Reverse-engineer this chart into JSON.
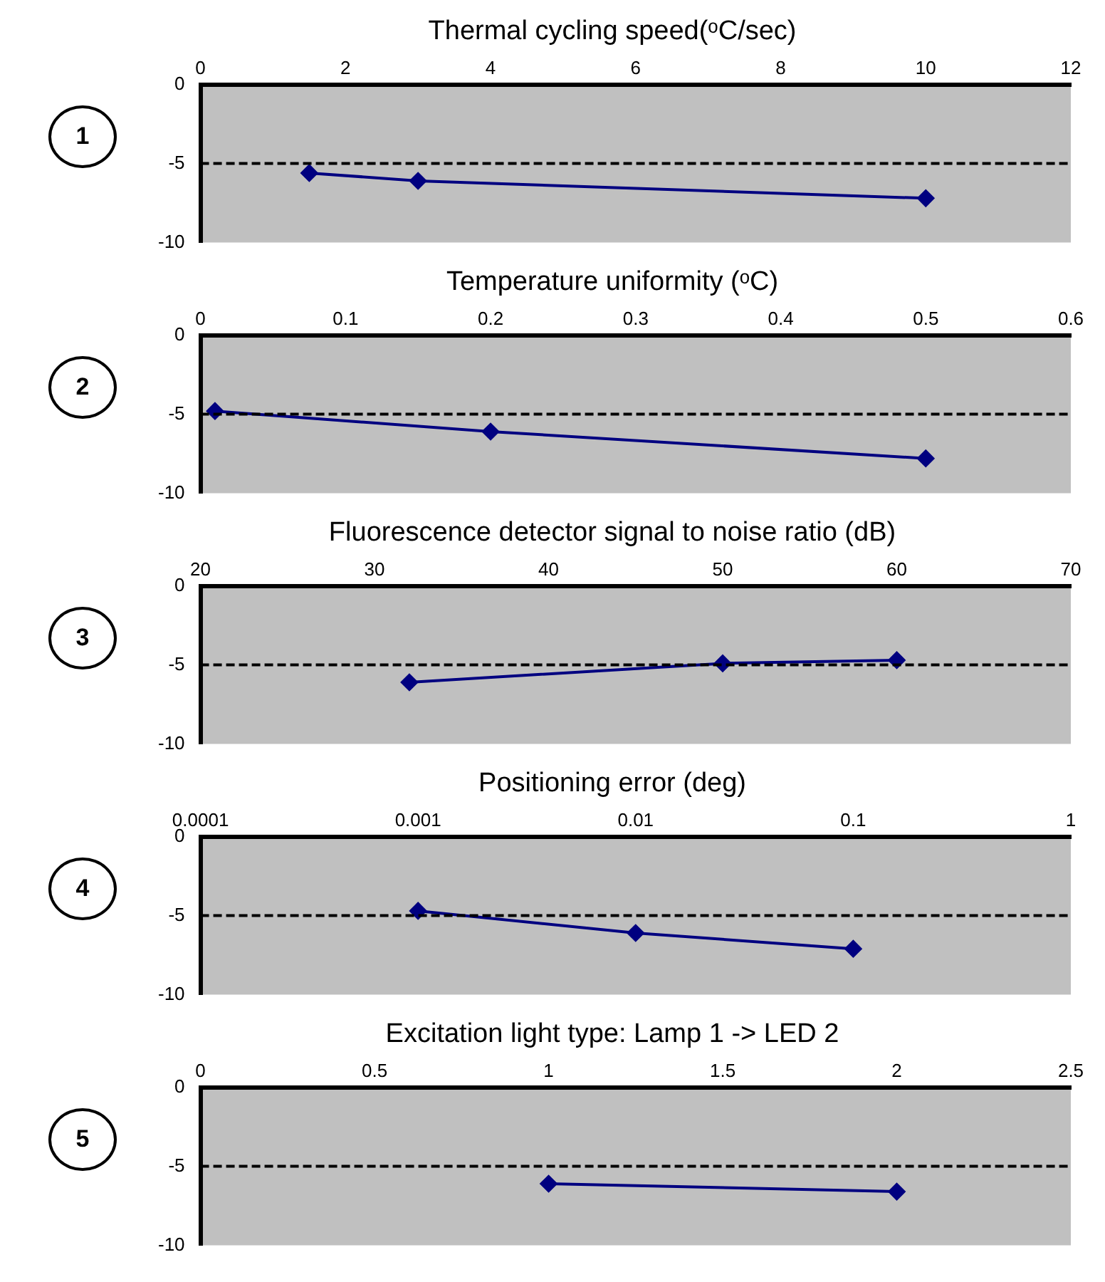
{
  "chart_data": [
    {
      "type": "line",
      "title": "Thermal cycling speed(ᵒC/sec)",
      "annotations": [
        "1"
      ],
      "x": [
        1.5,
        3,
        10
      ],
      "series": [
        {
          "color": "#000080",
          "values": [
            -5.6,
            -6.1,
            -7.2
          ]
        }
      ],
      "xlim": [
        0,
        12
      ],
      "xticks": [
        0,
        2,
        4,
        6,
        8,
        10,
        12
      ],
      "ylim": [
        -10,
        0
      ],
      "yticks": [
        -10,
        -5,
        0
      ],
      "ref_lines": [
        {
          "axis": "y",
          "value": -5,
          "color": "#000000",
          "line_style": "dashed"
        }
      ],
      "marker": "diamond",
      "grid": false,
      "legend": false
    },
    {
      "type": "line",
      "title": "Temperature uniformity (ᵒC)",
      "annotations": [
        "2"
      ],
      "x": [
        0.01,
        0.2,
        0.5
      ],
      "series": [
        {
          "color": "#000080",
          "values": [
            -4.8,
            -6.1,
            -7.8
          ]
        }
      ],
      "xlim": [
        0,
        0.6
      ],
      "xticks": [
        0,
        0.1,
        0.2,
        0.3,
        0.4,
        0.5,
        0.6
      ],
      "ylim": [
        -10,
        0
      ],
      "yticks": [
        -10,
        -5,
        0
      ],
      "ref_lines": [
        {
          "axis": "y",
          "value": -5,
          "color": "#000000",
          "line_style": "dashed"
        }
      ],
      "marker": "diamond",
      "grid": false,
      "legend": false
    },
    {
      "type": "line",
      "title": "Fluorescence detector signal to noise ratio (dB)",
      "annotations": [
        "3"
      ],
      "x": [
        32,
        50,
        60
      ],
      "series": [
        {
          "color": "#000080",
          "values": [
            -6.1,
            -4.9,
            -4.7
          ]
        }
      ],
      "xlim": [
        20,
        70
      ],
      "xticks": [
        20,
        30,
        40,
        50,
        60,
        70
      ],
      "ylim": [
        -10,
        0
      ],
      "yticks": [
        -10,
        -5,
        0
      ],
      "ref_lines": [
        {
          "axis": "y",
          "value": -5,
          "color": "#000000",
          "line_style": "dashed"
        }
      ],
      "marker": "diamond",
      "grid": false,
      "legend": false
    },
    {
      "type": "line",
      "title": "Positioning error (deg)",
      "annotations": [
        "4"
      ],
      "x": [
        0.001,
        0.01,
        0.1
      ],
      "series": [
        {
          "color": "#000080",
          "values": [
            -4.7,
            -6.1,
            -7.1
          ]
        }
      ],
      "xlim": [
        0.0001,
        1
      ],
      "xticks": [
        0.0001,
        0.001,
        0.01,
        0.1,
        1
      ],
      "ylim": [
        -10,
        0
      ],
      "yticks": [
        -10,
        -5,
        0
      ],
      "log": "x",
      "ref_lines": [
        {
          "axis": "y",
          "value": -5,
          "color": "#000000",
          "line_style": "dashed"
        }
      ],
      "marker": "diamond",
      "grid": false,
      "legend": false
    },
    {
      "type": "line",
      "title": "Excitation light type: Lamp 1 -> LED 2",
      "annotations": [
        "5"
      ],
      "x": [
        1,
        2
      ],
      "series": [
        {
          "color": "#000080",
          "values": [
            -6.1,
            -6.6
          ]
        }
      ],
      "xlim": [
        0,
        2.5
      ],
      "xticks": [
        0,
        0.5,
        1,
        1.5,
        2,
        2.5
      ],
      "ylim": [
        -10,
        0
      ],
      "yticks": [
        -10,
        -5,
        0
      ],
      "ref_lines": [
        {
          "axis": "y",
          "value": -5,
          "color": "#000000",
          "line_style": "dashed"
        }
      ],
      "marker": "diamond",
      "grid": false,
      "legend": false
    }
  ]
}
